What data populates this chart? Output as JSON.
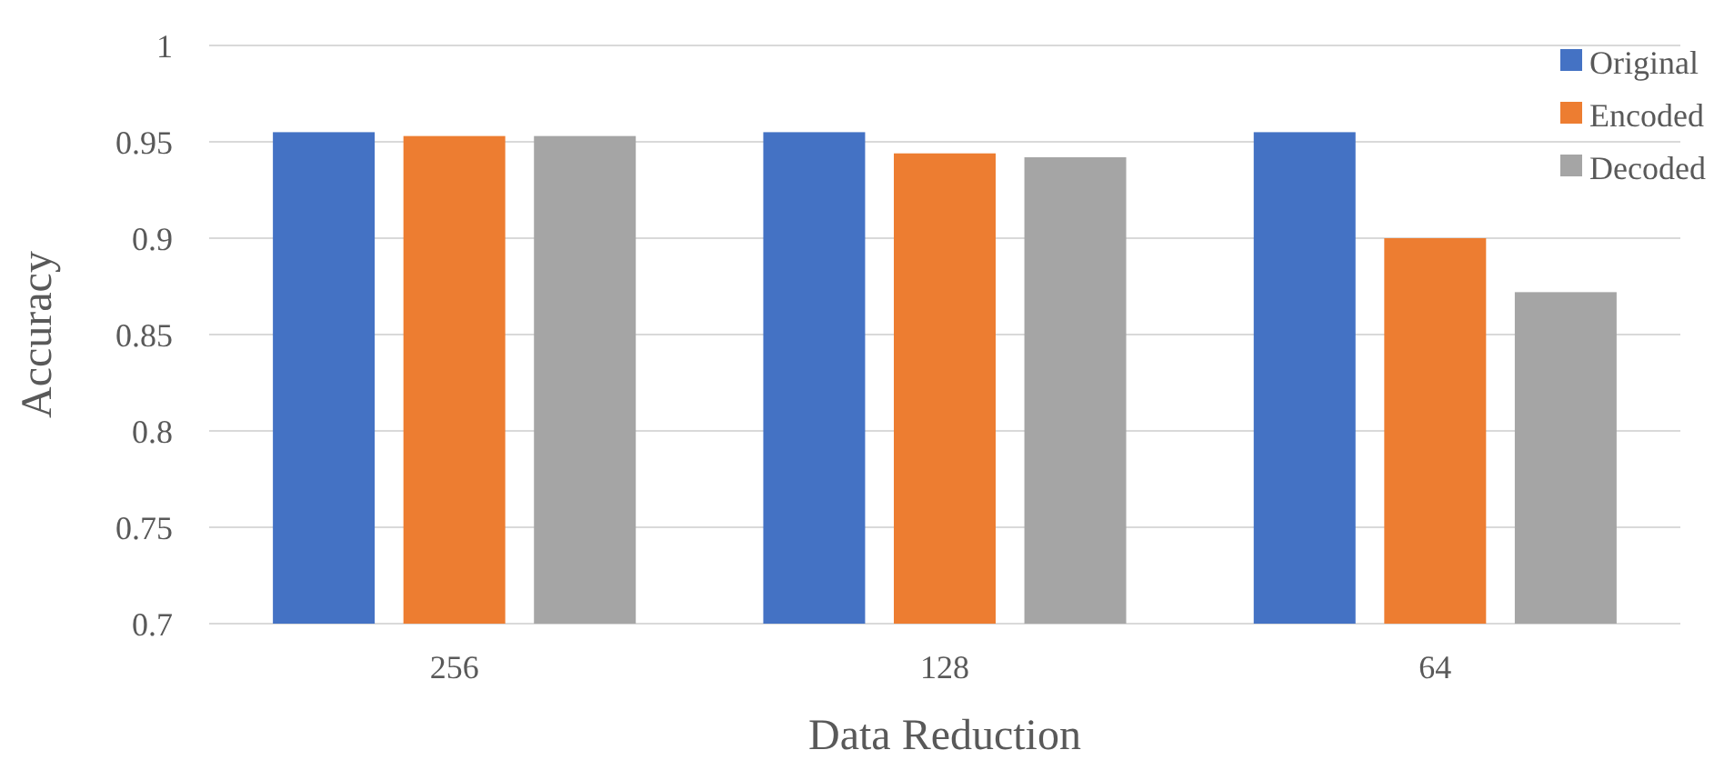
{
  "chart_data": {
    "type": "bar",
    "xlabel": "Data Reduction",
    "ylabel": "Accuracy",
    "categories": [
      "256",
      "128",
      "64"
    ],
    "series": [
      {
        "name": "Original",
        "color": "#4472c4",
        "values": [
          0.955,
          0.955,
          0.955
        ]
      },
      {
        "name": "Encoded",
        "color": "#ed7d31",
        "values": [
          0.953,
          0.944,
          0.9
        ]
      },
      {
        "name": "Decoded",
        "color": "#a5a5a5",
        "values": [
          0.953,
          0.942,
          0.872
        ]
      }
    ],
    "ylim": [
      0.7,
      1
    ],
    "yticks": [
      0.7,
      0.75,
      0.8,
      0.85,
      0.9,
      0.95,
      1
    ],
    "grid": "y",
    "legend": "top right"
  }
}
